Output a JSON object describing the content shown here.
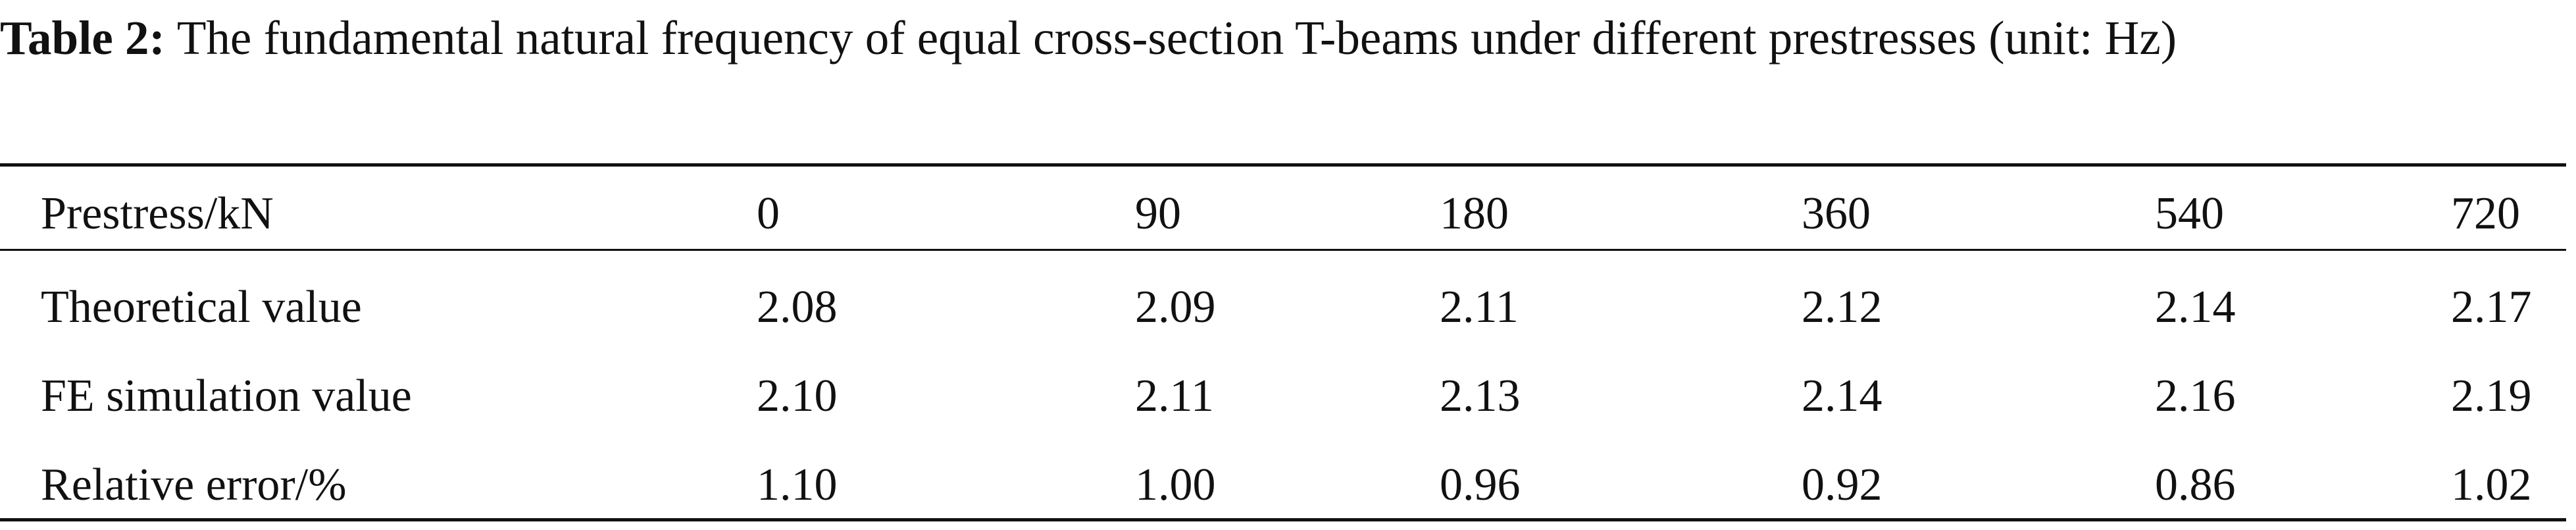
{
  "caption": {
    "label": "Table 2:",
    "text": "The fundamental natural frequency of equal cross-section T-beams under different prestresses (unit: Hz)"
  },
  "table": {
    "header": [
      "Prestress/kN",
      "0",
      "90",
      "180",
      "360",
      "540",
      "720"
    ],
    "rows": [
      [
        "Theoretical value",
        "2.08",
        "2.09",
        "2.11",
        "2.12",
        "2.14",
        "2.17"
      ],
      [
        "FE simulation value",
        "2.10",
        "2.11",
        "2.13",
        "2.14",
        "2.16",
        "2.19"
      ],
      [
        "Relative error/%",
        "1.10",
        "1.00",
        "0.96",
        "0.92",
        "0.86",
        "1.02"
      ]
    ]
  }
}
